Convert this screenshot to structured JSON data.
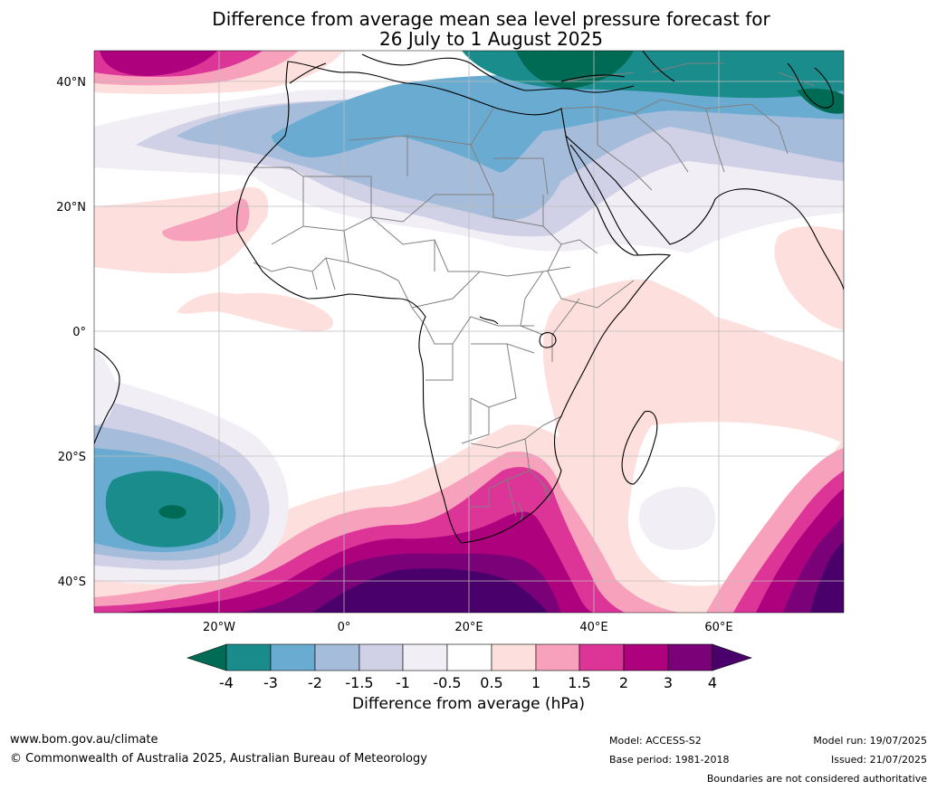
{
  "title": {
    "line1": "Difference from average mean sea level pressure forecast for",
    "line2": "26 July to 1 August 2025"
  },
  "map": {
    "lat_labels": [
      "40°N",
      "20°N",
      "0°",
      "20°S",
      "40°S"
    ],
    "lon_labels": [
      "20°W",
      "0°",
      "20°E",
      "40°E",
      "60°E"
    ],
    "colors": {
      "below_-4": "#006b54",
      "-4_-3": "#1a8c8c",
      "-3_-2": "#6aabd2",
      "-2_-1.5": "#a6bcdb",
      "-1.5_-1": "#d0d1e6",
      "-1_-0.5": "#f1eef6",
      "-0.5_0.5": "#ffffff",
      "0.5_1": "#fde0dd",
      "1_1.5": "#f8a1bd",
      "1.5_2": "#dd3497",
      "2_3": "#ae017e",
      "3_4": "#7a0177",
      "above_4": "#49006a",
      "land_border": "#000000",
      "country_border": "#808080"
    }
  },
  "colorbar": {
    "ticks": [
      "-4",
      "-3",
      "-2",
      "-1.5",
      "-1",
      "-0.5",
      "0.5",
      "1",
      "1.5",
      "2",
      "3",
      "4"
    ],
    "label": "Difference from average (hPa)"
  },
  "footer": {
    "website": "www.bom.gov.au/climate",
    "copyright": "© Commonwealth of Australia 2025, Australian Bureau of Meteorology",
    "model": "Model: ACCESS-S2",
    "base_period": "Base period: 1981-2018",
    "model_run": "Model run: 19/07/2025",
    "issued": "Issued: 21/07/2025",
    "disclaimer": "Boundaries are not considered authoritative"
  }
}
